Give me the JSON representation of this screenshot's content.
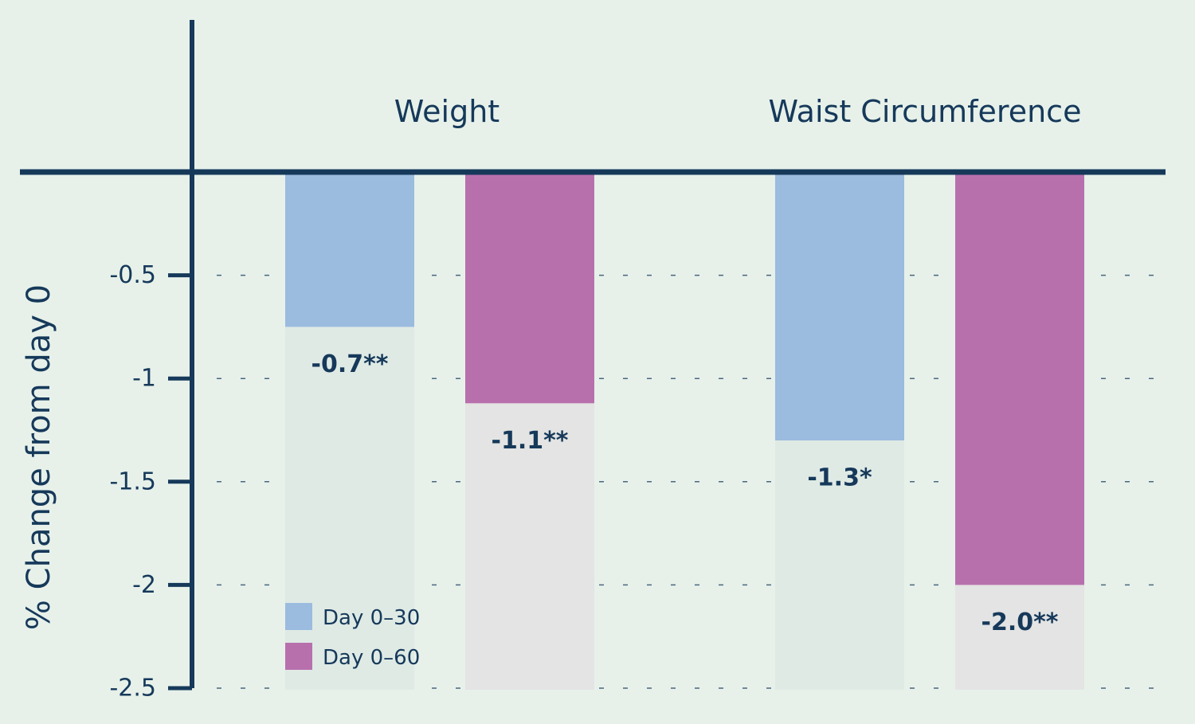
{
  "chart_data": {
    "type": "bar",
    "categories": [
      "Weight",
      "Waist Circumference"
    ],
    "series": [
      {
        "name": "Day 0–30",
        "values": [
          -0.75,
          -1.3
        ],
        "labels": [
          "-0.7**",
          "-1.3*"
        ],
        "color": "#9bbbdf"
      },
      {
        "name": "Day 0–60",
        "values": [
          -1.12,
          -2.0
        ],
        "labels": [
          "-1.1**",
          "-2.0**"
        ],
        "color": "#b870ad"
      }
    ],
    "ylabel": "% Change from day 0",
    "ylim": [
      -2.5,
      0
    ],
    "yticks": [
      -0.5,
      -1,
      -1.5,
      -2,
      -2.5
    ],
    "ytick_labels": [
      "-0.5",
      "-1",
      "-1.5",
      "-2",
      "-2.5"
    ],
    "grid": "dashed horizontal",
    "legend_position": "bottom-left",
    "colors": {
      "background": "#e7f1ea",
      "axis": "#16395a",
      "bar_track_day30": "#dfeae5",
      "bar_track_day60": "#e3e4e3"
    }
  }
}
